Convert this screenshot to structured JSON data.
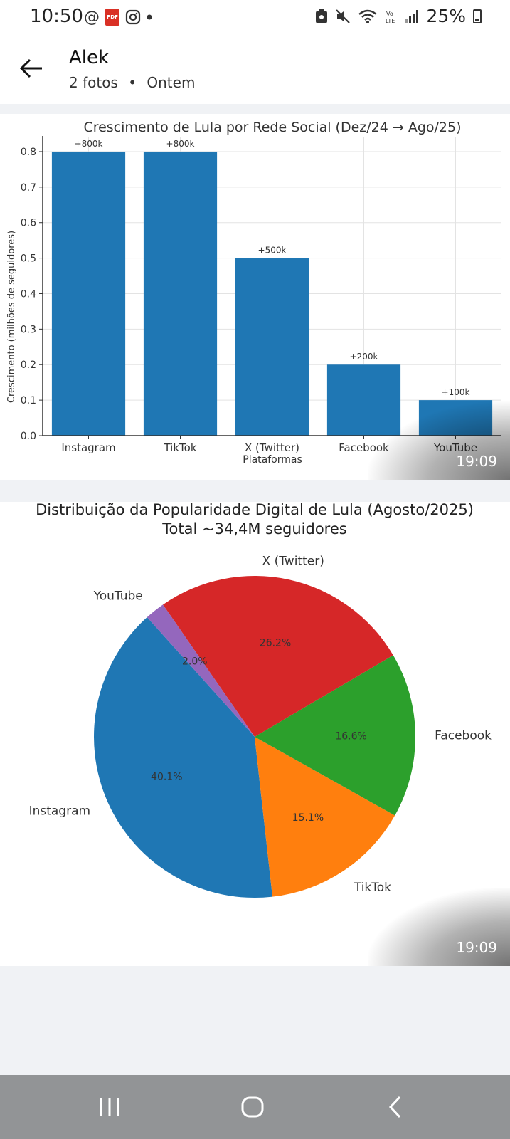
{
  "status_bar": {
    "time": "10:50",
    "at_symbol": "@",
    "pdf_label": "PDF",
    "battery": "25%"
  },
  "header": {
    "title": "Alek",
    "photo_count": "2 fotos",
    "separator": "•",
    "date": "Ontem"
  },
  "photos": [
    {
      "time": "19:09"
    },
    {
      "time": "19:09"
    }
  ],
  "chart_data": [
    {
      "type": "bar",
      "title": "Crescimento de Lula por Rede Social (Dez/24 → Ago/25)",
      "xlabel": "Plataformas",
      "ylabel": "Crescimento (milhões de seguidores)",
      "categories": [
        "Instagram",
        "TikTok",
        "X (Twitter)",
        "Facebook",
        "YouTube"
      ],
      "values": [
        0.8,
        0.8,
        0.5,
        0.2,
        0.1
      ],
      "data_labels": [
        "+800k",
        "+800k",
        "+500k",
        "+200k",
        "+100k"
      ],
      "ylim": [
        0,
        0.84
      ],
      "yticks": [
        "0.0",
        "0.1",
        "0.2",
        "0.3",
        "0.4",
        "0.5",
        "0.6",
        "0.7",
        "0.8"
      ],
      "grid": true,
      "color": "#1f77b4"
    },
    {
      "type": "pie",
      "title": "Distribuição da Popularidade Digital de Lula (Agosto/2025)",
      "subtitle": "Total ~34,4M seguidores",
      "slices": [
        {
          "label": "Instagram",
          "value": 40.1,
          "pct": "40.1%",
          "color": "#1f77b4"
        },
        {
          "label": "TikTok",
          "value": 15.1,
          "pct": "15.1%",
          "color": "#ff7f0e"
        },
        {
          "label": "Facebook",
          "value": 16.6,
          "pct": "16.6%",
          "color": "#2ca02c"
        },
        {
          "label": "X (Twitter)",
          "value": 26.2,
          "pct": "26.2%",
          "color": "#d62728"
        },
        {
          "label": "YouTube",
          "value": 2.0,
          "pct": "2.0%",
          "color": "#9467bd"
        }
      ]
    }
  ]
}
